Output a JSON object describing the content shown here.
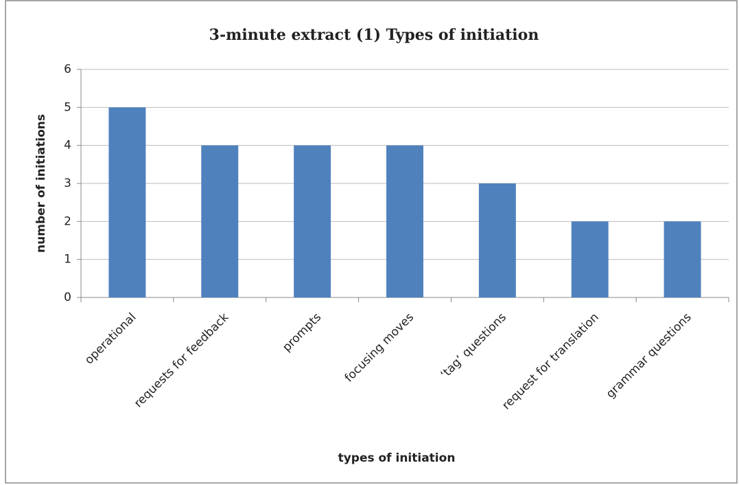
{
  "chart_data": {
    "type": "bar",
    "title": "3-minute extract (1) Types of initiation",
    "x_label": "types of initiation",
    "y_label": "number of initiations",
    "categories": [
      "operational",
      "requests for feedback",
      "prompts",
      "focusing moves",
      "‘tag’ questions",
      "request for translation",
      "grammar questions"
    ],
    "values": [
      5,
      4,
      4,
      4,
      3,
      2,
      2
    ],
    "color": "#4f81bd",
    "ylim": [
      0,
      6
    ],
    "yticks": [
      0,
      1,
      2,
      3,
      4,
      5,
      6
    ],
    "grid": true
  }
}
